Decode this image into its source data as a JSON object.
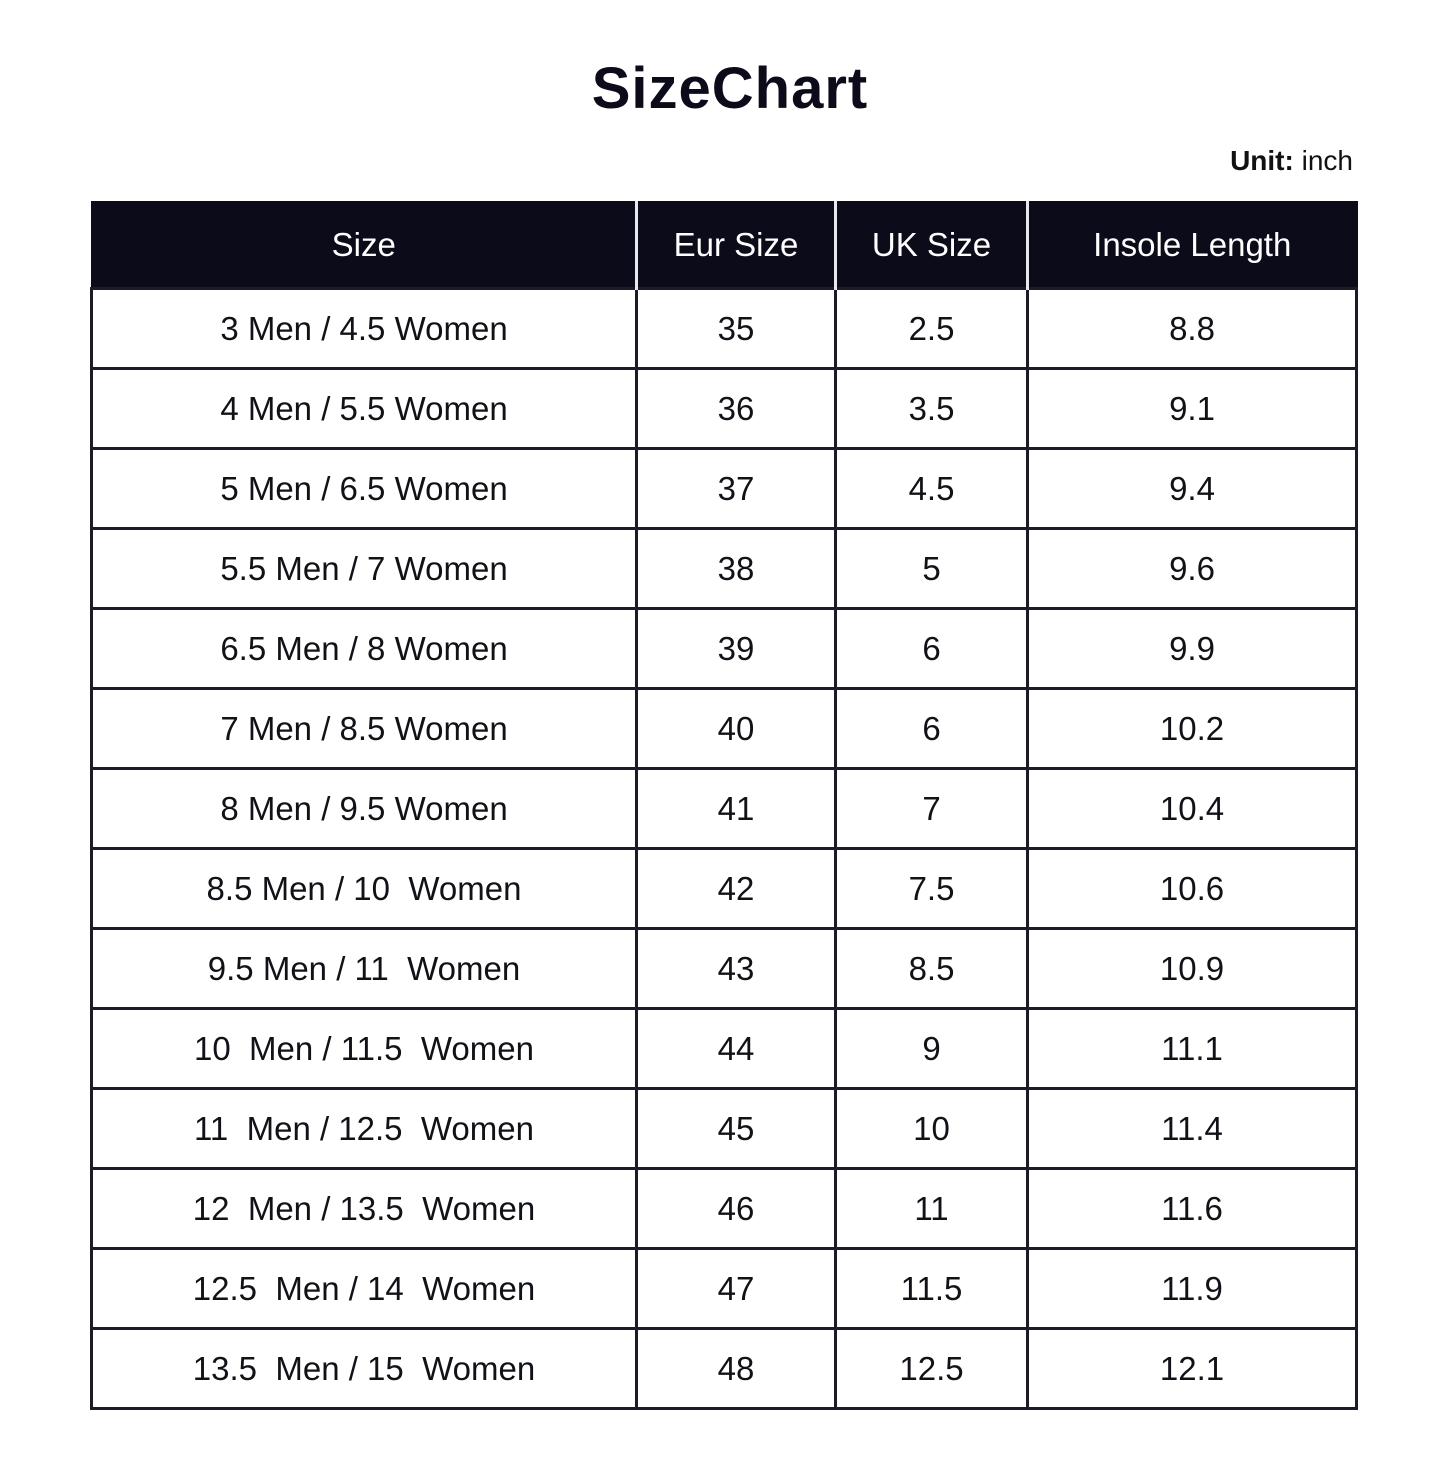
{
  "title": "SizeChart",
  "unit": {
    "label": "Unit:",
    "value": "inch"
  },
  "table": {
    "headers": [
      "Size",
      "Eur Size",
      "UK Size",
      "Insole Length"
    ],
    "rows": [
      [
        "3 Men / 4.5 Women",
        "35",
        "2.5",
        "8.8"
      ],
      [
        "4 Men / 5.5 Women",
        "36",
        "3.5",
        "9.1"
      ],
      [
        "5 Men / 6.5 Women",
        "37",
        "4.5",
        "9.4"
      ],
      [
        "5.5 Men / 7 Women",
        "38",
        "5",
        "9.6"
      ],
      [
        "6.5 Men / 8 Women",
        "39",
        "6",
        "9.9"
      ],
      [
        "7 Men / 8.5 Women",
        "40",
        "6",
        "10.2"
      ],
      [
        "8 Men / 9.5 Women",
        "41",
        "7",
        "10.4"
      ],
      [
        "8.5 Men / 10  Women",
        "42",
        "7.5",
        "10.6"
      ],
      [
        "9.5 Men / 11  Women",
        "43",
        "8.5",
        "10.9"
      ],
      [
        "10  Men / 11.5  Women",
        "44",
        "9",
        "11.1"
      ],
      [
        "11  Men / 12.5  Women",
        "45",
        "10",
        "11.4"
      ],
      [
        "12  Men / 13.5  Women",
        "46",
        "11",
        "11.6"
      ],
      [
        "12.5  Men / 14  Women",
        "47",
        "11.5",
        "11.9"
      ],
      [
        "13.5  Men / 15  Women",
        "48",
        "12.5",
        "12.1"
      ]
    ]
  }
}
